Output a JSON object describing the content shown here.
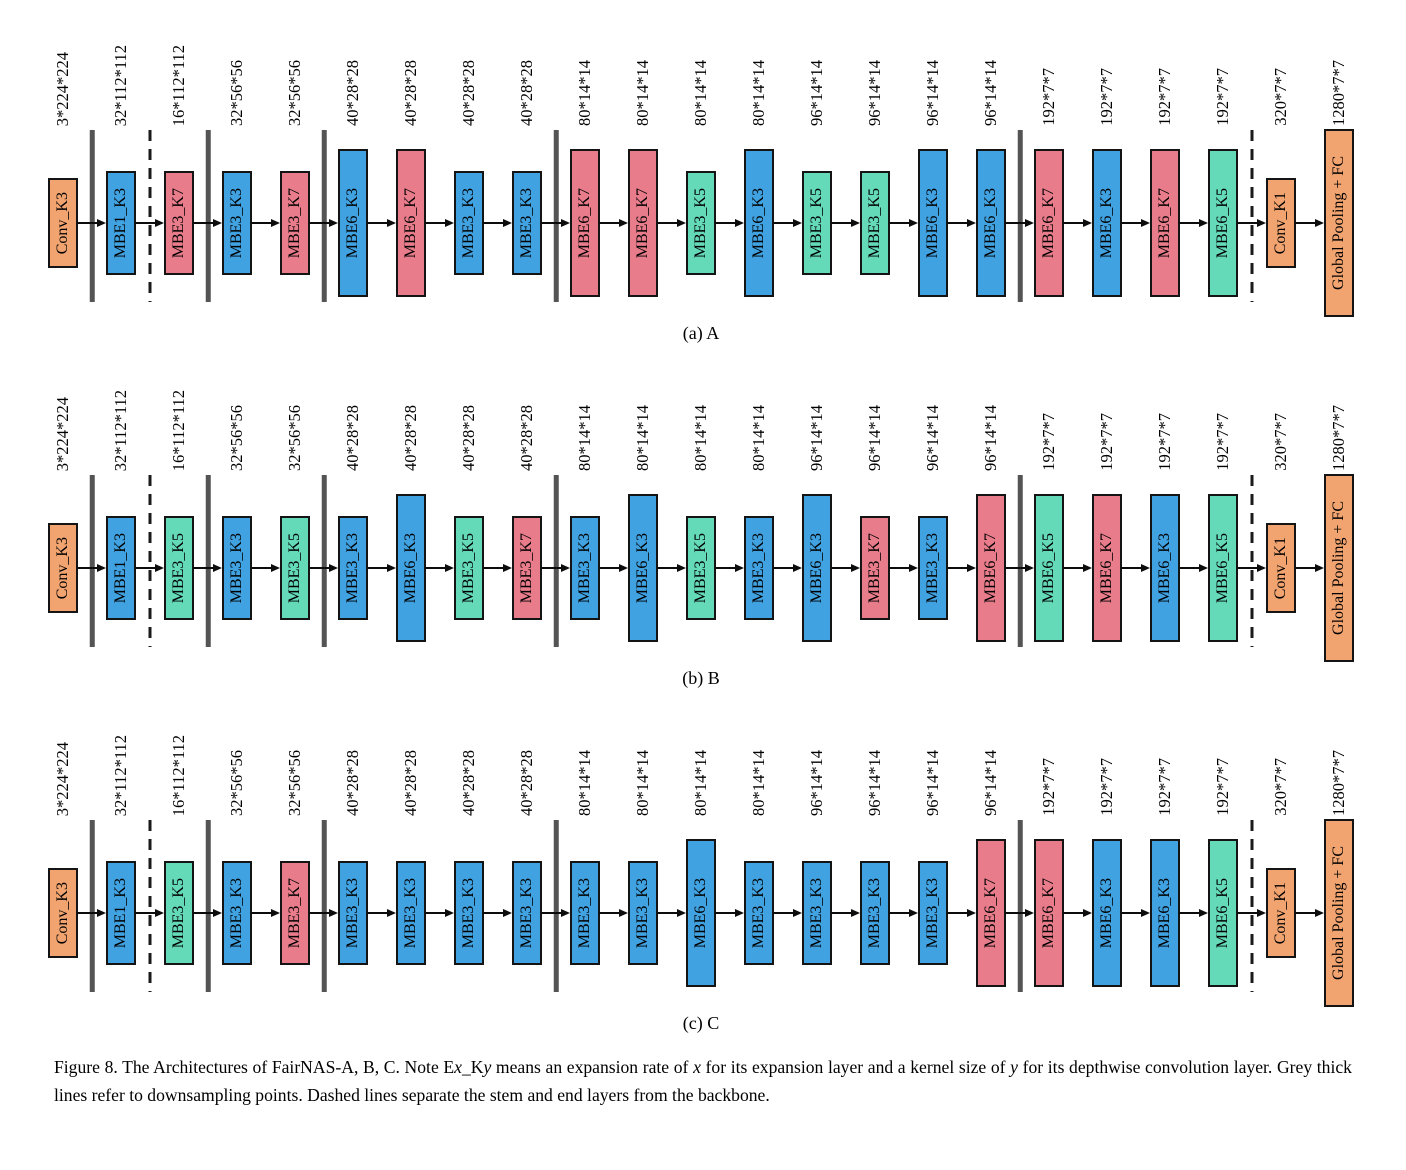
{
  "figure": {
    "theme": {
      "orange": "#F2A470",
      "blue": "#41A2E2",
      "red": "#E87C8B",
      "green": "#64DAB9",
      "grey": "#545454"
    },
    "separators_after": [
      {
        "index": 0,
        "style": "solid"
      },
      {
        "index": 1,
        "style": "dashed"
      },
      {
        "index": 2,
        "style": "solid"
      },
      {
        "index": 4,
        "style": "solid"
      },
      {
        "index": 8,
        "style": "solid"
      },
      {
        "index": 16,
        "style": "solid"
      },
      {
        "index": 20,
        "style": "dashed"
      }
    ],
    "rows": [
      {
        "id": "a",
        "subcaption": "(a) A",
        "blocks": [
          {
            "label": "Conv_K3",
            "dims": "3*224*224",
            "type": "conv",
            "size": "s"
          },
          {
            "label": "MBE1_K3",
            "dims": "32*112*112",
            "type": "k3",
            "size": "m"
          },
          {
            "label": "MBE3_K7",
            "dims": "16*112*112",
            "type": "k7",
            "size": "m"
          },
          {
            "label": "MBE3_K3",
            "dims": "32*56*56",
            "type": "k3",
            "size": "m"
          },
          {
            "label": "MBE3_K7",
            "dims": "32*56*56",
            "type": "k7",
            "size": "m"
          },
          {
            "label": "MBE6_K3",
            "dims": "40*28*28",
            "type": "k3",
            "size": "l"
          },
          {
            "label": "MBE6_K7",
            "dims": "40*28*28",
            "type": "k7",
            "size": "l"
          },
          {
            "label": "MBE3_K3",
            "dims": "40*28*28",
            "type": "k3",
            "size": "m"
          },
          {
            "label": "MBE3_K3",
            "dims": "40*28*28",
            "type": "k3",
            "size": "m"
          },
          {
            "label": "MBE6_K7",
            "dims": "80*14*14",
            "type": "k7",
            "size": "l"
          },
          {
            "label": "MBE6_K7",
            "dims": "80*14*14",
            "type": "k7",
            "size": "l"
          },
          {
            "label": "MBE3_K5",
            "dims": "80*14*14",
            "type": "k5",
            "size": "m"
          },
          {
            "label": "MBE6_K3",
            "dims": "80*14*14",
            "type": "k3",
            "size": "l"
          },
          {
            "label": "MBE3_K5",
            "dims": "96*14*14",
            "type": "k5",
            "size": "m"
          },
          {
            "label": "MBE3_K5",
            "dims": "96*14*14",
            "type": "k5",
            "size": "m"
          },
          {
            "label": "MBE6_K3",
            "dims": "96*14*14",
            "type": "k3",
            "size": "l"
          },
          {
            "label": "MBE6_K3",
            "dims": "96*14*14",
            "type": "k3",
            "size": "l"
          },
          {
            "label": "MBE6_K7",
            "dims": "192*7*7",
            "type": "k7",
            "size": "l"
          },
          {
            "label": "MBE6_K3",
            "dims": "192*7*7",
            "type": "k3",
            "size": "l"
          },
          {
            "label": "MBE6_K7",
            "dims": "192*7*7",
            "type": "k7",
            "size": "l"
          },
          {
            "label": "MBE6_K5",
            "dims": "192*7*7",
            "type": "k5",
            "size": "l"
          },
          {
            "label": "Conv_K1",
            "dims": "320*7*7",
            "type": "conv",
            "size": "s"
          },
          {
            "label": "Global Pooling + FC",
            "dims": "1280*7*7",
            "type": "conv",
            "size": "xl"
          }
        ]
      },
      {
        "id": "b",
        "subcaption": "(b) B",
        "blocks": [
          {
            "label": "Conv_K3",
            "dims": "3*224*224",
            "type": "conv",
            "size": "s"
          },
          {
            "label": "MBE1_K3",
            "dims": "32*112*112",
            "type": "k3",
            "size": "m"
          },
          {
            "label": "MBE3_K5",
            "dims": "16*112*112",
            "type": "k5",
            "size": "m"
          },
          {
            "label": "MBE3_K3",
            "dims": "32*56*56",
            "type": "k3",
            "size": "m"
          },
          {
            "label": "MBE3_K5",
            "dims": "32*56*56",
            "type": "k5",
            "size": "m"
          },
          {
            "label": "MBE3_K3",
            "dims": "40*28*28",
            "type": "k3",
            "size": "m"
          },
          {
            "label": "MBE6_K3",
            "dims": "40*28*28",
            "type": "k3",
            "size": "l"
          },
          {
            "label": "MBE3_K5",
            "dims": "40*28*28",
            "type": "k5",
            "size": "m"
          },
          {
            "label": "MBE3_K7",
            "dims": "40*28*28",
            "type": "k7",
            "size": "m"
          },
          {
            "label": "MBE3_K3",
            "dims": "80*14*14",
            "type": "k3",
            "size": "m"
          },
          {
            "label": "MBE6_K3",
            "dims": "80*14*14",
            "type": "k3",
            "size": "l"
          },
          {
            "label": "MBE3_K5",
            "dims": "80*14*14",
            "type": "k5",
            "size": "m"
          },
          {
            "label": "MBE3_K3",
            "dims": "80*14*14",
            "type": "k3",
            "size": "m"
          },
          {
            "label": "MBE6_K3",
            "dims": "96*14*14",
            "type": "k3",
            "size": "l"
          },
          {
            "label": "MBE3_K7",
            "dims": "96*14*14",
            "type": "k7",
            "size": "m"
          },
          {
            "label": "MBE3_K3",
            "dims": "96*14*14",
            "type": "k3",
            "size": "m"
          },
          {
            "label": "MBE6_K7",
            "dims": "96*14*14",
            "type": "k7",
            "size": "l"
          },
          {
            "label": "MBE6_K5",
            "dims": "192*7*7",
            "type": "k5",
            "size": "l"
          },
          {
            "label": "MBE6_K7",
            "dims": "192*7*7",
            "type": "k7",
            "size": "l"
          },
          {
            "label": "MBE6_K3",
            "dims": "192*7*7",
            "type": "k3",
            "size": "l"
          },
          {
            "label": "MBE6_K5",
            "dims": "192*7*7",
            "type": "k5",
            "size": "l"
          },
          {
            "label": "Conv_K1",
            "dims": "320*7*7",
            "type": "conv",
            "size": "s"
          },
          {
            "label": "Global Pooling + FC",
            "dims": "1280*7*7",
            "type": "conv",
            "size": "xl"
          }
        ]
      },
      {
        "id": "c",
        "subcaption": "(c) C",
        "blocks": [
          {
            "label": "Conv_K3",
            "dims": "3*224*224",
            "type": "conv",
            "size": "s"
          },
          {
            "label": "MBE1_K3",
            "dims": "32*112*112",
            "type": "k3",
            "size": "m"
          },
          {
            "label": "MBE3_K5",
            "dims": "16*112*112",
            "type": "k5",
            "size": "m"
          },
          {
            "label": "MBE3_K3",
            "dims": "32*56*56",
            "type": "k3",
            "size": "m"
          },
          {
            "label": "MBE3_K7",
            "dims": "32*56*56",
            "type": "k7",
            "size": "m"
          },
          {
            "label": "MBE3_K3",
            "dims": "40*28*28",
            "type": "k3",
            "size": "m"
          },
          {
            "label": "MBE3_K3",
            "dims": "40*28*28",
            "type": "k3",
            "size": "m"
          },
          {
            "label": "MBE3_K3",
            "dims": "40*28*28",
            "type": "k3",
            "size": "m"
          },
          {
            "label": "MBE3_K3",
            "dims": "40*28*28",
            "type": "k3",
            "size": "m"
          },
          {
            "label": "MBE3_K3",
            "dims": "80*14*14",
            "type": "k3",
            "size": "m"
          },
          {
            "label": "MBE3_K3",
            "dims": "80*14*14",
            "type": "k3",
            "size": "m"
          },
          {
            "label": "MBE6_K3",
            "dims": "80*14*14",
            "type": "k3",
            "size": "l"
          },
          {
            "label": "MBE3_K3",
            "dims": "80*14*14",
            "type": "k3",
            "size": "m"
          },
          {
            "label": "MBE3_K3",
            "dims": "96*14*14",
            "type": "k3",
            "size": "m"
          },
          {
            "label": "MBE3_K3",
            "dims": "96*14*14",
            "type": "k3",
            "size": "m"
          },
          {
            "label": "MBE3_K3",
            "dims": "96*14*14",
            "type": "k3",
            "size": "m"
          },
          {
            "label": "MBE6_K7",
            "dims": "96*14*14",
            "type": "k7",
            "size": "l"
          },
          {
            "label": "MBE6_K7",
            "dims": "192*7*7",
            "type": "k7",
            "size": "l"
          },
          {
            "label": "MBE6_K3",
            "dims": "192*7*7",
            "type": "k3",
            "size": "l"
          },
          {
            "label": "MBE6_K3",
            "dims": "192*7*7",
            "type": "k3",
            "size": "l"
          },
          {
            "label": "MBE6_K5",
            "dims": "192*7*7",
            "type": "k5",
            "size": "l"
          },
          {
            "label": "Conv_K1",
            "dims": "320*7*7",
            "type": "conv",
            "size": "s"
          },
          {
            "label": "Global Pooling + FC",
            "dims": "1280*7*7",
            "type": "conv",
            "size": "xl"
          }
        ]
      }
    ],
    "caption_segments": [
      {
        "text": "Figure 8. The Architectures of FairNAS-A, B, C. Note E"
      },
      {
        "text": "x",
        "italic": true
      },
      {
        "text": "_K"
      },
      {
        "text": "y",
        "italic": true
      },
      {
        "text": " means an expansion rate of "
      },
      {
        "text": "x",
        "italic": true
      },
      {
        "text": " for its expansion layer and a kernel size of "
      },
      {
        "text": "y",
        "italic": true
      },
      {
        "text": " for its depthwise convolution layer. Grey thick lines refer to downsampling points. Dashed lines separate the stem and end layers from the backbone."
      }
    ]
  }
}
